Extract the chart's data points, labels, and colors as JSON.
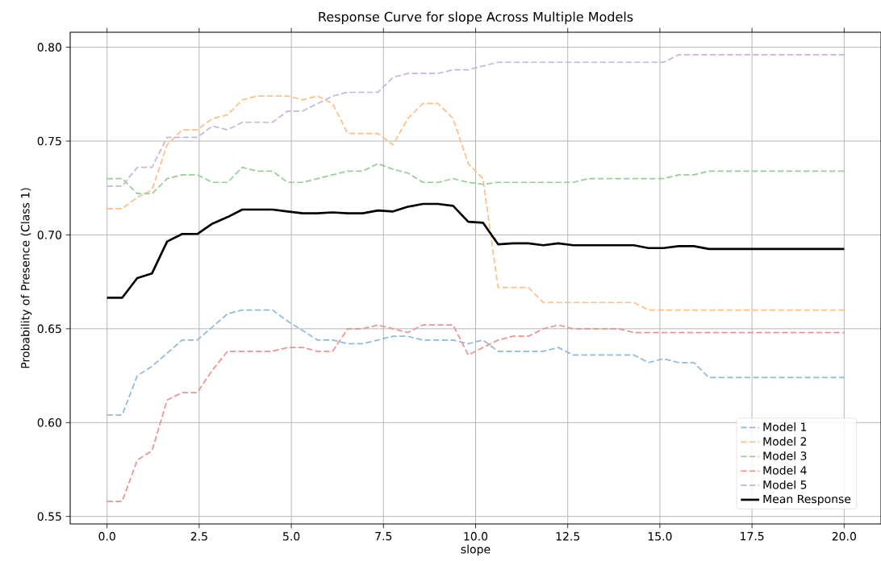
{
  "chart_data": {
    "type": "line",
    "title": "Response Curve for slope Across Multiple Models",
    "xlabel": "slope",
    "ylabel": "Probability of Presence (Class 1)",
    "x": [
      0,
      0.41,
      0.82,
      1.22,
      1.63,
      2.04,
      2.45,
      2.86,
      3.27,
      3.67,
      4.08,
      4.49,
      4.9,
      5.31,
      5.71,
      6.12,
      6.53,
      6.94,
      7.35,
      7.76,
      8.16,
      8.57,
      8.98,
      9.39,
      9.8,
      10.2,
      10.61,
      11.02,
      11.43,
      11.84,
      12.24,
      12.65,
      13.06,
      13.47,
      13.88,
      14.29,
      14.69,
      15.1,
      15.51,
      15.92,
      16.33,
      16.73,
      17.14,
      17.55,
      17.96,
      18.37,
      18.78,
      19.18,
      19.59,
      20
    ],
    "series": [
      {
        "name": "Model 1",
        "color": "#8fbbd9",
        "line_style": "dashed",
        "values": [
          0.604,
          0.604,
          0.625,
          0.63,
          0.637,
          0.644,
          0.644,
          0.651,
          0.658,
          0.66,
          0.66,
          0.66,
          0.654,
          0.649,
          0.644,
          0.644,
          0.642,
          0.642,
          0.644,
          0.646,
          0.646,
          0.644,
          0.644,
          0.644,
          0.642,
          0.644,
          0.638,
          0.638,
          0.638,
          0.638,
          0.64,
          0.636,
          0.636,
          0.636,
          0.636,
          0.636,
          0.632,
          0.634,
          0.632,
          0.632,
          0.624,
          0.624,
          0.624,
          0.624,
          0.624,
          0.624,
          0.624,
          0.624,
          0.624,
          0.624
        ]
      },
      {
        "name": "Model 2",
        "color": "#ffbf86",
        "line_style": "dashed",
        "values": [
          0.714,
          0.714,
          0.72,
          0.724,
          0.748,
          0.756,
          0.756,
          0.762,
          0.764,
          0.772,
          0.774,
          0.774,
          0.774,
          0.772,
          0.774,
          0.77,
          0.754,
          0.754,
          0.754,
          0.748,
          0.762,
          0.77,
          0.77,
          0.762,
          0.738,
          0.73,
          0.672,
          0.672,
          0.672,
          0.664,
          0.664,
          0.664,
          0.664,
          0.664,
          0.664,
          0.664,
          0.66,
          0.66,
          0.66,
          0.66,
          0.66,
          0.66,
          0.66,
          0.66,
          0.66,
          0.66,
          0.66,
          0.66,
          0.66,
          0.66
        ]
      },
      {
        "name": "Model 3",
        "color": "#95cf95",
        "line_style": "dashed",
        "values": [
          0.73,
          0.73,
          0.722,
          0.722,
          0.73,
          0.732,
          0.732,
          0.728,
          0.728,
          0.736,
          0.734,
          0.734,
          0.728,
          0.728,
          0.73,
          0.732,
          0.734,
          0.734,
          0.738,
          0.735,
          0.733,
          0.728,
          0.728,
          0.73,
          0.728,
          0.727,
          0.728,
          0.728,
          0.728,
          0.728,
          0.728,
          0.728,
          0.73,
          0.73,
          0.73,
          0.73,
          0.73,
          0.73,
          0.732,
          0.732,
          0.734,
          0.734,
          0.734,
          0.734,
          0.734,
          0.734,
          0.734,
          0.734,
          0.734,
          0.734
        ]
      },
      {
        "name": "Model 4",
        "color": "#ea9393",
        "line_style": "dashed",
        "values": [
          0.558,
          0.558,
          0.58,
          0.585,
          0.612,
          0.616,
          0.616,
          0.628,
          0.638,
          0.638,
          0.638,
          0.638,
          0.64,
          0.64,
          0.638,
          0.638,
          0.65,
          0.65,
          0.652,
          0.65,
          0.648,
          0.652,
          0.652,
          0.652,
          0.636,
          0.64,
          0.644,
          0.646,
          0.646,
          0.65,
          0.652,
          0.65,
          0.65,
          0.65,
          0.65,
          0.648,
          0.648,
          0.648,
          0.648,
          0.648,
          0.648,
          0.648,
          0.648,
          0.648,
          0.648,
          0.648,
          0.648,
          0.648,
          0.648,
          0.648
        ]
      },
      {
        "name": "Model 5",
        "color": "#c9b3de",
        "line_style": "dashed",
        "values": [
          0.726,
          0.726,
          0.736,
          0.736,
          0.752,
          0.752,
          0.752,
          0.758,
          0.756,
          0.76,
          0.76,
          0.76,
          0.766,
          0.766,
          0.77,
          0.774,
          0.776,
          0.776,
          0.776,
          0.784,
          0.786,
          0.786,
          0.786,
          0.788,
          0.788,
          0.79,
          0.792,
          0.792,
          0.792,
          0.792,
          0.792,
          0.792,
          0.792,
          0.792,
          0.792,
          0.792,
          0.792,
          0.792,
          0.796,
          0.796,
          0.796,
          0.796,
          0.796,
          0.796,
          0.796,
          0.796,
          0.796,
          0.796,
          0.796,
          0.796
        ]
      },
      {
        "name": "Mean Response",
        "color": "#000000",
        "line_style": "solid",
        "values": [
          0.6665,
          0.6665,
          0.677,
          0.6795,
          0.6965,
          0.7005,
          0.7005,
          0.706,
          0.7095,
          0.7135,
          0.7135,
          0.7135,
          0.7125,
          0.7115,
          0.7115,
          0.712,
          0.7115,
          0.7115,
          0.713,
          0.7125,
          0.715,
          0.7165,
          0.7165,
          0.7155,
          0.707,
          0.7065,
          0.695,
          0.6955,
          0.6955,
          0.6945,
          0.6955,
          0.6945,
          0.6945,
          0.6945,
          0.6945,
          0.6945,
          0.693,
          0.693,
          0.694,
          0.694,
          0.6925,
          0.6925,
          0.6925,
          0.6925,
          0.6925,
          0.6925,
          0.6925,
          0.6925,
          0.6925,
          0.6925
        ]
      }
    ],
    "xlim": [
      -1,
      21
    ],
    "ylim": [
      0.546,
      0.808
    ],
    "xticks": [
      {
        "value": 0,
        "label": "0.0"
      },
      {
        "value": 2.5,
        "label": "2.5"
      },
      {
        "value": 5,
        "label": "5.0"
      },
      {
        "value": 7.5,
        "label": "7.5"
      },
      {
        "value": 10,
        "label": "10.0"
      },
      {
        "value": 12.5,
        "label": "12.5"
      },
      {
        "value": 15,
        "label": "15.0"
      },
      {
        "value": 17.5,
        "label": "17.5"
      },
      {
        "value": 20,
        "label": "20.0"
      }
    ],
    "yticks": [
      {
        "value": 0.55,
        "label": "0.55"
      },
      {
        "value": 0.6,
        "label": "0.60"
      },
      {
        "value": 0.65,
        "label": "0.65"
      },
      {
        "value": 0.7,
        "label": "0.70"
      },
      {
        "value": 0.75,
        "label": "0.75"
      },
      {
        "value": 0.8,
        "label": "0.80"
      }
    ],
    "grid": true,
    "legend": "bottom right",
    "marker": "none"
  }
}
